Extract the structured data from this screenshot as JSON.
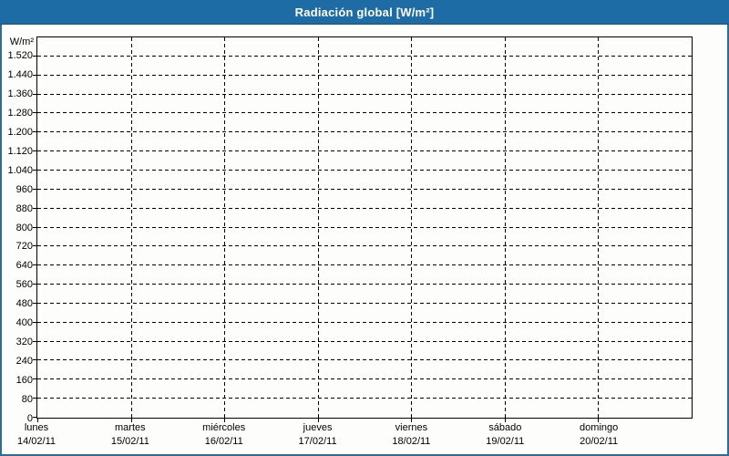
{
  "window": {
    "title": "Radiación global [W/m²]"
  },
  "colors": {
    "header_bg": "#1e6ca5",
    "frame_border": "#2f6d99",
    "plot_border": "#000000",
    "grid": "#000000",
    "title_text": "#ffffff",
    "label_text": "#000000",
    "background": "#fdfefb"
  },
  "chart_data": {
    "type": "line",
    "title": "Radiación global [W/m²]",
    "ylabel": "W/m²",
    "grid": "dashed-both-axes",
    "legend": "none",
    "series": [],
    "y_axis": {
      "min": 0,
      "max": 1600,
      "tick_step": 80,
      "ticks": [
        {
          "value": 0,
          "label": "0"
        },
        {
          "value": 80,
          "label": "80"
        },
        {
          "value": 160,
          "label": "160"
        },
        {
          "value": 240,
          "label": "240"
        },
        {
          "value": 320,
          "label": "320"
        },
        {
          "value": 400,
          "label": "400"
        },
        {
          "value": 480,
          "label": "480"
        },
        {
          "value": 560,
          "label": "560"
        },
        {
          "value": 640,
          "label": "640"
        },
        {
          "value": 720,
          "label": "720"
        },
        {
          "value": 800,
          "label": "800"
        },
        {
          "value": 880,
          "label": "880"
        },
        {
          "value": 960,
          "label": "960"
        },
        {
          "value": 1040,
          "label": "1.040"
        },
        {
          "value": 1120,
          "label": "1.120"
        },
        {
          "value": 1200,
          "label": "1.200"
        },
        {
          "value": 1280,
          "label": "1.280"
        },
        {
          "value": 1360,
          "label": "1.360"
        },
        {
          "value": 1440,
          "label": "1.440"
        },
        {
          "value": 1520,
          "label": "1.520"
        }
      ]
    },
    "x_axis": {
      "categories": [
        {
          "day": "lunes",
          "date": "14/02/11"
        },
        {
          "day": "martes",
          "date": "15/02/11"
        },
        {
          "day": "miércoles",
          "date": "16/02/11"
        },
        {
          "day": "jueves",
          "date": "17/02/11"
        },
        {
          "day": "viernes",
          "date": "18/02/11"
        },
        {
          "day": "sábado",
          "date": "19/02/11"
        },
        {
          "day": "domingo",
          "date": "20/02/11"
        }
      ]
    }
  }
}
